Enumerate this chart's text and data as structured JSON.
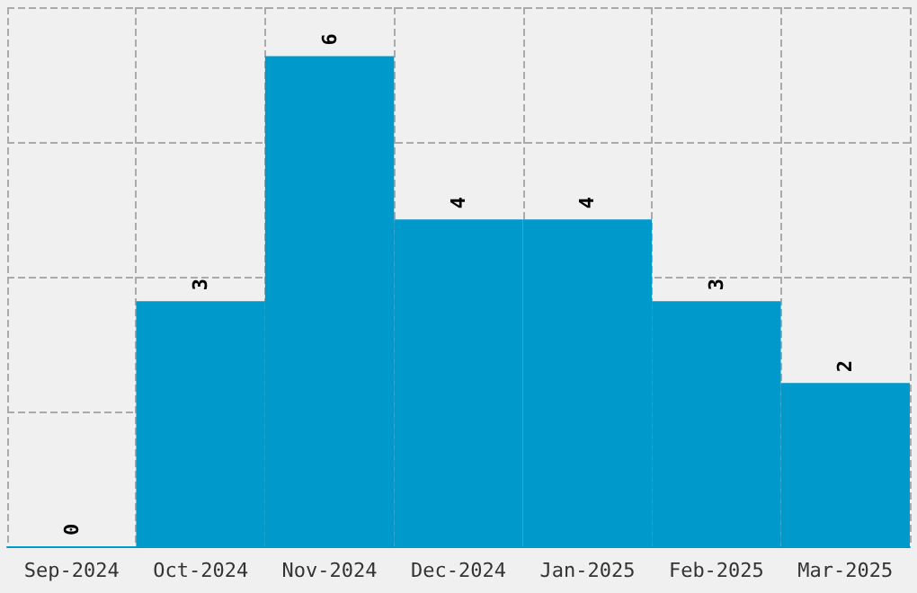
{
  "chart_data": {
    "type": "bar",
    "categories": [
      "Sep-2024",
      "Oct-2024",
      "Nov-2024",
      "Dec-2024",
      "Jan-2025",
      "Feb-2025",
      "Mar-2025"
    ],
    "values": [
      0,
      3,
      6,
      4,
      4,
      3,
      2
    ],
    "color": "#0099cc",
    "ylim": [
      0,
      6.6
    ],
    "yticks": [
      {
        "value": 0,
        "label": null
      },
      {
        "value": 1.65,
        "label": null
      },
      {
        "value": 3.3,
        "label": null
      },
      {
        "value": 4.95,
        "label": null
      },
      {
        "value": 6.6,
        "label": null
      }
    ],
    "grid": true,
    "tick_labels": "x",
    "data_labels": true
  }
}
